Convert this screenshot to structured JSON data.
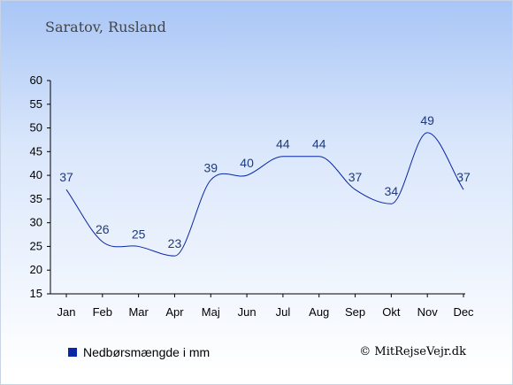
{
  "title": "Saratov, Rusland",
  "legend": {
    "label": "Nedbørsmængde i mm",
    "color": "#0a27a6"
  },
  "credit": "© MitRejseVejr.dk",
  "colors": {
    "line": "#0a27a6",
    "labels": "#1f3a7a"
  },
  "chart_data": {
    "type": "line",
    "categories": [
      "Jan",
      "Feb",
      "Mar",
      "Apr",
      "Maj",
      "Jun",
      "Jul",
      "Aug",
      "Sep",
      "Okt",
      "Nov",
      "Dec"
    ],
    "series": [
      {
        "name": "Nedbørsmængde i mm",
        "values": [
          37,
          26,
          25,
          23,
          39,
          40,
          44,
          44,
          37,
          34,
          49,
          37
        ]
      }
    ],
    "ylim": [
      15,
      60
    ],
    "yticks": [
      15,
      20,
      25,
      30,
      35,
      40,
      45,
      50,
      55,
      60
    ],
    "grid": false,
    "legend_position": "bottom-left"
  }
}
